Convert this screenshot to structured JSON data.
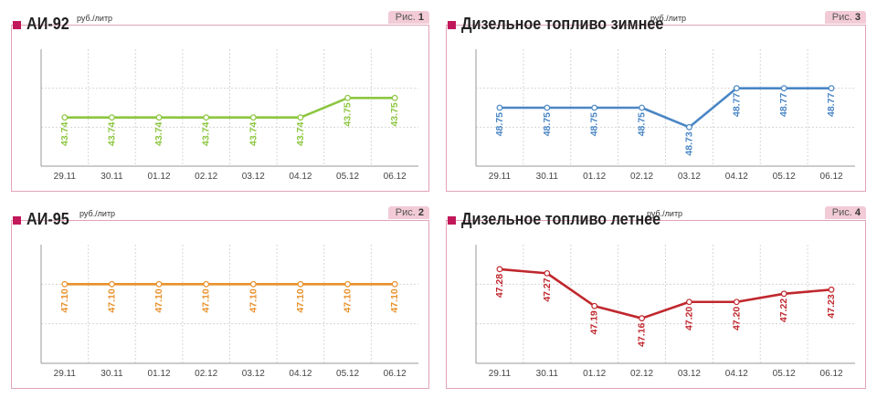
{
  "figure_prefix": "Рис.",
  "unit": "руб./литр",
  "charts": [
    {
      "id": "ai92",
      "number": "1",
      "title": "АИ-92",
      "color": "#8cc63f",
      "chart_data": {
        "type": "line",
        "title": "АИ-92",
        "ylabel": "руб./литр",
        "categories": [
          "29.11",
          "30.11",
          "01.12",
          "02.12",
          "03.12",
          "04.12",
          "05.12",
          "06.12"
        ],
        "series": [
          {
            "values": [
              43.74,
              43.74,
              43.74,
              43.74,
              43.74,
              43.74,
              43.75,
              43.75
            ]
          }
        ],
        "value_labels": [
          "43.74",
          "43.74",
          "43.74",
          "43.74",
          "43.74",
          "43.74",
          "43.75",
          "43.75"
        ],
        "ylim": [
          43.715,
          43.775
        ],
        "grid": true,
        "label_position": "below"
      }
    },
    {
      "id": "diesel-winter",
      "number": "3",
      "title": "Дизельное топливо зимнее",
      "color": "#4a86c5",
      "chart_data": {
        "type": "line",
        "title": "Дизельное топливо зимнее",
        "ylabel": "руб./литр",
        "categories": [
          "29.11",
          "30.11",
          "01.12",
          "02.12",
          "03.12",
          "04.12",
          "05.12",
          "06.12"
        ],
        "series": [
          {
            "values": [
              48.75,
              48.75,
              48.75,
              48.75,
              48.73,
              48.77,
              48.77,
              48.77
            ]
          }
        ],
        "value_labels": [
          "48.75",
          "48.75",
          "48.75",
          "48.75",
          "48.73",
          "48.77",
          "48.77",
          "48.77"
        ],
        "ylim": [
          48.69,
          48.81
        ],
        "grid": true,
        "label_position": "below"
      }
    },
    {
      "id": "ai95",
      "number": "2",
      "title": "АИ-95",
      "color": "#e8902a",
      "chart_data": {
        "type": "line",
        "title": "АИ-95",
        "ylabel": "руб./литр",
        "categories": [
          "29.11",
          "30.11",
          "01.12",
          "02.12",
          "03.12",
          "04.12",
          "05.12",
          "06.12"
        ],
        "series": [
          {
            "values": [
              47.1,
              47.1,
              47.1,
              47.1,
              47.1,
              47.1,
              47.1,
              47.1
            ]
          }
        ],
        "value_labels": [
          "47.10",
          "47.10",
          "47.10",
          "47.10",
          "47.10",
          "47.10",
          "47.10",
          "47.10"
        ],
        "ylim": [
          46.9,
          47.2
        ],
        "grid": true,
        "label_position": "below"
      }
    },
    {
      "id": "diesel-summer",
      "number": "4",
      "title": "Дизельное топливо летнее",
      "color": "#c0272d",
      "chart_data": {
        "type": "line",
        "title": "Дизельное топливо летнее",
        "ylabel": "руб./литр",
        "categories": [
          "29.11",
          "30.11",
          "01.12",
          "02.12",
          "03.12",
          "04.12",
          "05.12",
          "06.12"
        ],
        "series": [
          {
            "values": [
              47.28,
              47.27,
              47.19,
              47.16,
              47.2,
              47.2,
              47.22,
              47.23
            ]
          }
        ],
        "value_labels": [
          "47.28",
          "47.27",
          "47.19",
          "47.16",
          "47.20",
          "47.20",
          "47.22",
          "47.23"
        ],
        "ylim": [
          47.05,
          47.34
        ],
        "grid": true,
        "label_position": "below"
      }
    }
  ]
}
